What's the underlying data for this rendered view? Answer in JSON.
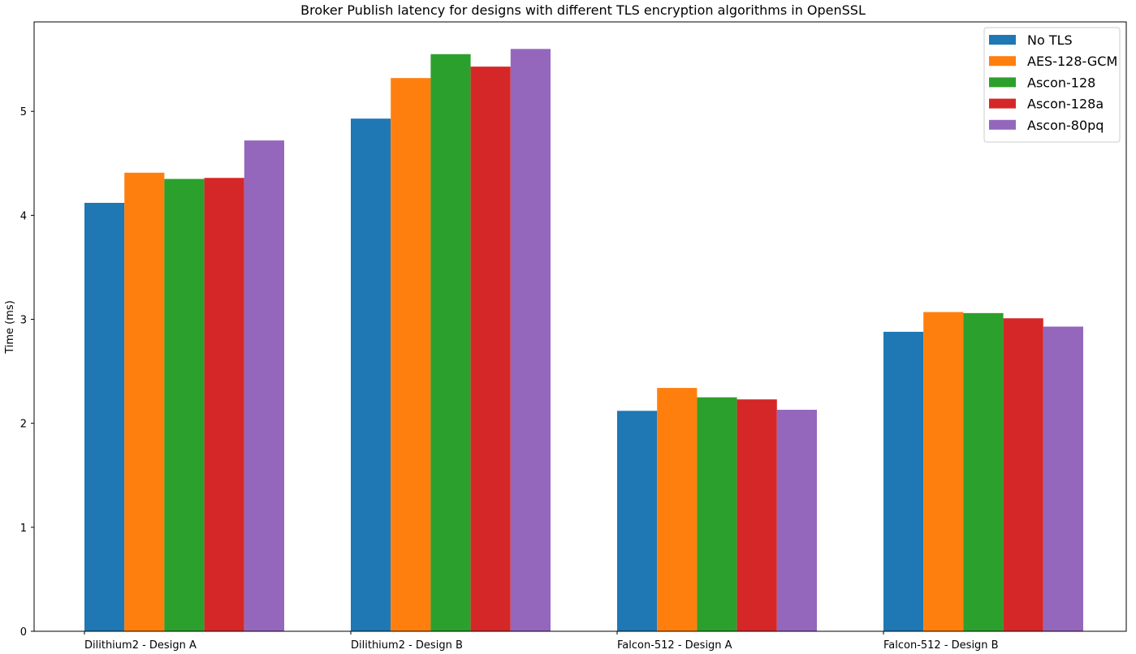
{
  "chart_data": {
    "type": "bar",
    "title": "Broker Publish latency for designs with different TLS encryption algorithms in OpenSSL",
    "xlabel": "",
    "ylabel": "Time (ms)",
    "ylim": [
      0,
      5.86
    ],
    "yticks": [
      0,
      1,
      2,
      3,
      4,
      5
    ],
    "grid": false,
    "legend_position": "top-right",
    "categories": [
      "Dilithium2 - Design A",
      "Dilithium2 - Design B",
      "Falcon-512 - Design A",
      "Falcon-512 - Design B"
    ],
    "series": [
      {
        "name": "No TLS",
        "color": "#1f77b4",
        "values": [
          4.12,
          4.93,
          2.12,
          2.88
        ]
      },
      {
        "name": "AES-128-GCM",
        "color": "#ff7f0e",
        "values": [
          4.41,
          5.32,
          2.34,
          3.07
        ]
      },
      {
        "name": "Ascon-128",
        "color": "#2ca02c",
        "values": [
          4.35,
          5.55,
          2.25,
          3.06
        ]
      },
      {
        "name": "Ascon-128a",
        "color": "#d62728",
        "values": [
          4.36,
          5.43,
          2.23,
          3.01
        ]
      },
      {
        "name": "Ascon-80pq",
        "color": "#9467bd",
        "values": [
          4.72,
          5.6,
          2.13,
          2.93
        ]
      }
    ]
  }
}
